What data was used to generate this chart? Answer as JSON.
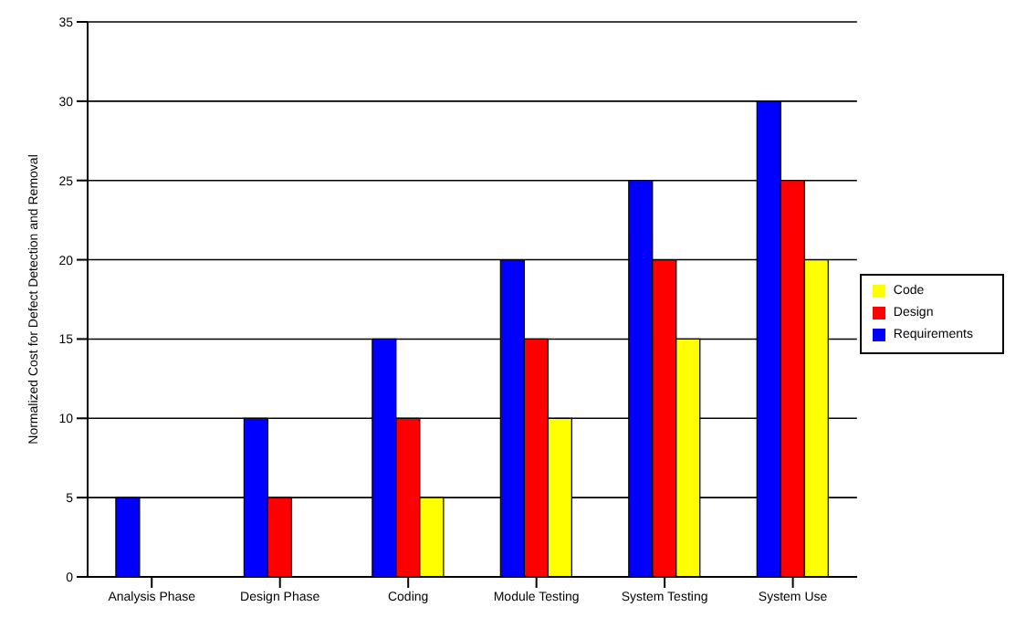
{
  "chart_data": {
    "type": "bar",
    "ylabel": "Normalized Cost for Defect Detection and Removal",
    "categories": [
      "Analysis Phase",
      "Design Phase",
      "Coding",
      "Module Testing",
      "System Testing",
      "System Use"
    ],
    "series": [
      {
        "name": "Requirements",
        "color": "#0000ff",
        "values": [
          5,
          10,
          15,
          20,
          25,
          30
        ]
      },
      {
        "name": "Design",
        "color": "#ff0000",
        "values": [
          null,
          5,
          10,
          15,
          20,
          25
        ]
      },
      {
        "name": "Code",
        "color": "#ffff00",
        "values": [
          null,
          null,
          5,
          10,
          15,
          20
        ]
      }
    ],
    "ylim": [
      0,
      35
    ],
    "yticks": [
      0,
      5,
      10,
      15,
      20,
      25,
      30,
      35
    ],
    "grid": "y",
    "legend": "right"
  }
}
